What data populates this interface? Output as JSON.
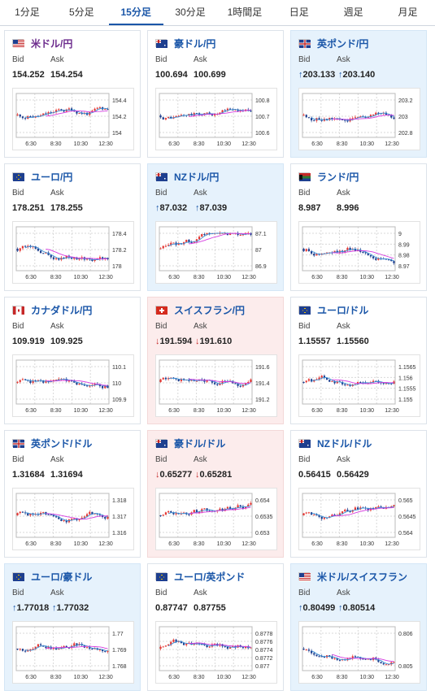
{
  "tabs": [
    "1分足",
    "5分足",
    "15分足",
    "30分足",
    "1時間足",
    "日足",
    "週足",
    "月足"
  ],
  "active_tab": 2,
  "colors": {
    "candle_up": "#e53935",
    "candle_down": "#1e3f8f",
    "ma_long": "#d63be0",
    "ma_short": "#3a8fd6",
    "grid": "#e6e6e6"
  },
  "cards": [
    {
      "name": "米ドル/円",
      "flag": "us",
      "state": "none",
      "bid": "154.252",
      "ask": "154.254",
      "arrow": "",
      "ylabels": [
        "154.4",
        "154.2",
        "154"
      ],
      "xlabels": [
        "6:30",
        "8:30",
        "10:30",
        "12:30"
      ],
      "purple": true
    },
    {
      "name": "豪ドル/円",
      "flag": "au",
      "state": "none",
      "bid": "100.694",
      "ask": "100.699",
      "arrow": "",
      "ylabels": [
        "100.8",
        "100.7",
        "100.6"
      ],
      "xlabels": [
        "6:30",
        "8:30",
        "10:30",
        "12:30"
      ]
    },
    {
      "name": "英ポンド/円",
      "flag": "gb",
      "state": "up",
      "bid": "203.133",
      "ask": "203.140",
      "arrow": "↑",
      "ylabels": [
        "203.2",
        "203",
        "202.8"
      ],
      "xlabels": [
        "6:30",
        "8:30",
        "10:30",
        "12:30"
      ]
    },
    {
      "name": "ユーロ/円",
      "flag": "eu",
      "state": "none",
      "bid": "178.251",
      "ask": "178.255",
      "arrow": "",
      "ylabels": [
        "178.4",
        "178.2",
        "178"
      ],
      "xlabels": [
        "6:30",
        "8:30",
        "10:30",
        "12:30"
      ]
    },
    {
      "name": "NZドル/円",
      "flag": "nz",
      "state": "up",
      "bid": "87.032",
      "ask": "87.039",
      "arrow": "↑",
      "ylabels": [
        "87.1",
        "87",
        "86.9"
      ],
      "xlabels": [
        "6:30",
        "8:30",
        "10:30",
        "12:30"
      ]
    },
    {
      "name": "ランド/円",
      "flag": "za",
      "state": "none",
      "bid": "8.987",
      "ask": "8.996",
      "arrow": "",
      "ylabels": [
        "9",
        "8.99",
        "8.98",
        "8.97"
      ],
      "xlabels": [
        "6:30",
        "8:30",
        "10:30",
        "12:30"
      ]
    },
    {
      "name": "カナダドル/円",
      "flag": "ca",
      "state": "none",
      "bid": "109.919",
      "ask": "109.925",
      "arrow": "",
      "ylabels": [
        "110.1",
        "110",
        "109.9"
      ],
      "xlabels": [
        "6:30",
        "8:30",
        "10:30",
        "12:30"
      ]
    },
    {
      "name": "スイスフラン/円",
      "flag": "ch",
      "state": "down",
      "bid": "191.594",
      "ask": "191.610",
      "arrow": "↓",
      "ylabels": [
        "191.6",
        "191.4",
        "191.2"
      ],
      "xlabels": [
        "6:30",
        "8:30",
        "10:30",
        "12:30"
      ]
    },
    {
      "name": "ユーロ/ドル",
      "flag": "eu",
      "state": "none",
      "bid": "1.15557",
      "ask": "1.15560",
      "arrow": "",
      "ylabels": [
        "1.1565",
        "1.156",
        "1.1555",
        "1.155"
      ],
      "xlabels": [
        "6:30",
        "8:30",
        "10:30",
        "12:30"
      ]
    },
    {
      "name": "英ポンド/ドル",
      "flag": "gb",
      "state": "none",
      "bid": "1.31684",
      "ask": "1.31694",
      "arrow": "",
      "ylabels": [
        "1.318",
        "1.317",
        "1.316"
      ],
      "xlabels": [
        "6:30",
        "8:30",
        "10:30",
        "12:30"
      ]
    },
    {
      "name": "豪ドル/ドル",
      "flag": "au",
      "state": "down",
      "bid": "0.65277",
      "ask": "0.65281",
      "arrow": "↓",
      "ylabels": [
        "0.654",
        "0.6535",
        "0.653"
      ],
      "xlabels": [
        "6:30",
        "8:30",
        "10:30",
        "12:30"
      ]
    },
    {
      "name": "NZドル/ドル",
      "flag": "nz",
      "state": "none",
      "bid": "0.56415",
      "ask": "0.56429",
      "arrow": "",
      "ylabels": [
        "0.565",
        "0.5645",
        "0.564"
      ],
      "xlabels": [
        "6:30",
        "8:30",
        "10:30",
        "12:30"
      ]
    },
    {
      "name": "ユーロ/豪ドル",
      "flag": "eu",
      "state": "up",
      "bid": "1.77018",
      "ask": "1.77032",
      "arrow": "↑",
      "ylabels": [
        "1.77",
        "1.769",
        "1.768"
      ],
      "xlabels": [
        "6:30",
        "8:30",
        "10:30",
        "12:30"
      ]
    },
    {
      "name": "ユーロ/英ポンド",
      "flag": "eu",
      "state": "none",
      "bid": "0.87747",
      "ask": "0.87755",
      "arrow": "",
      "ylabels": [
        "0.8778",
        "0.8776",
        "0.8774",
        "0.8772",
        "0.877"
      ],
      "xlabels": [
        "6:30",
        "8:30",
        "10:30",
        "12:30"
      ]
    },
    {
      "name": "米ドル/スイスフラン",
      "flag": "us",
      "state": "up",
      "bid": "0.80499",
      "ask": "0.80514",
      "arrow": "↑",
      "ylabels": [
        "0.806",
        "0.805"
      ],
      "xlabels": [
        "6:30",
        "8:30",
        "10:30",
        "12:30"
      ]
    }
  ],
  "labels": {
    "bid": "Bid",
    "ask": "Ask"
  }
}
